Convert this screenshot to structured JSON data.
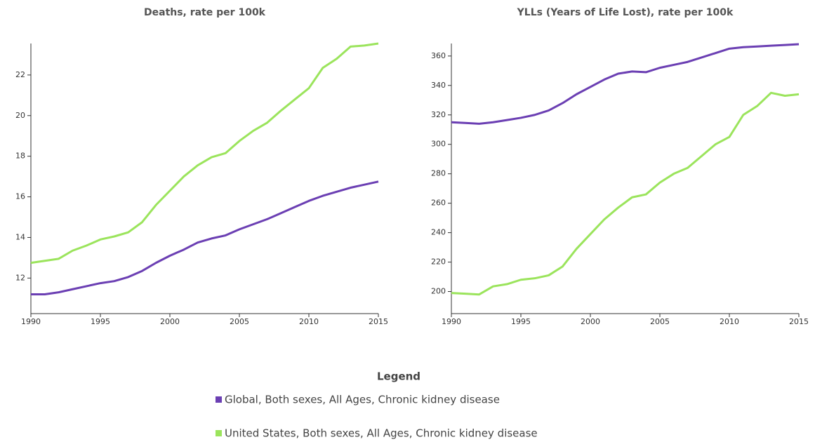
{
  "legend_title": "Legend",
  "chart_data": [
    {
      "type": "line",
      "title": "Deaths, rate per 100k",
      "x": [
        1990,
        1991,
        1992,
        1993,
        1994,
        1995,
        1996,
        1997,
        1998,
        1999,
        2000,
        2001,
        2002,
        2003,
        2004,
        2005,
        2006,
        2007,
        2008,
        2009,
        2010,
        2011,
        2012,
        2013,
        2014,
        2015
      ],
      "xlim": [
        1990,
        2015
      ],
      "xticks": [
        1990,
        1995,
        2000,
        2005,
        2010,
        2015
      ],
      "ylim": [
        10.25,
        23.55
      ],
      "yticks": [
        12,
        14,
        16,
        18,
        20,
        22
      ],
      "series": [
        {
          "name": "Global, Both sexes, All Ages, Chronic kidney disease",
          "color": "#6b3fb3",
          "values": [
            11.2,
            11.2,
            11.3,
            11.45,
            11.6,
            11.75,
            11.85,
            12.05,
            12.35,
            12.75,
            13.1,
            13.4,
            13.75,
            13.95,
            14.1,
            14.4,
            14.65,
            14.9,
            15.2,
            15.5,
            15.8,
            16.05,
            16.25,
            16.45,
            16.6,
            16.75
          ]
        },
        {
          "name": "United States, Both sexes, All Ages, Chronic kidney disease",
          "color": "#9be45c",
          "values": [
            12.75,
            12.85,
            12.95,
            13.35,
            13.6,
            13.9,
            14.05,
            14.25,
            14.75,
            15.6,
            16.3,
            17.0,
            17.55,
            17.95,
            18.15,
            18.75,
            19.25,
            19.65,
            20.25,
            20.8,
            21.35,
            22.35,
            22.8,
            23.4,
            23.45,
            23.55
          ]
        }
      ]
    },
    {
      "type": "line",
      "title": "YLLs (Years of Life Lost), rate per 100k",
      "x": [
        1990,
        1991,
        1992,
        1993,
        1994,
        1995,
        1996,
        1997,
        1998,
        1999,
        2000,
        2001,
        2002,
        2003,
        2004,
        2005,
        2006,
        2007,
        2008,
        2009,
        2010,
        2011,
        2012,
        2013,
        2014,
        2015
      ],
      "xlim": [
        1990,
        2015
      ],
      "xticks": [
        1990,
        1995,
        2000,
        2005,
        2010,
        2015
      ],
      "ylim": [
        185,
        368.5
      ],
      "yticks": [
        200,
        220,
        240,
        260,
        280,
        300,
        320,
        340,
        360
      ],
      "series": [
        {
          "name": "Global, Both sexes, All Ages, Chronic kidney disease",
          "color": "#6b3fb3",
          "values": [
            315,
            314.5,
            314,
            315,
            316.5,
            318,
            320,
            323,
            328,
            334,
            339,
            344,
            348,
            349.5,
            349,
            352,
            354,
            356,
            359,
            362,
            365,
            366,
            366.5,
            367,
            367.5,
            368
          ]
        },
        {
          "name": "United States, Both sexes, All Ages, Chronic kidney disease",
          "color": "#9be45c",
          "values": [
            199,
            198.5,
            198,
            203.5,
            205,
            208,
            209,
            211,
            217,
            229,
            239,
            249,
            257,
            264,
            266,
            274,
            280,
            284,
            292,
            300,
            305,
            320,
            326,
            335,
            333,
            334
          ]
        }
      ]
    }
  ]
}
